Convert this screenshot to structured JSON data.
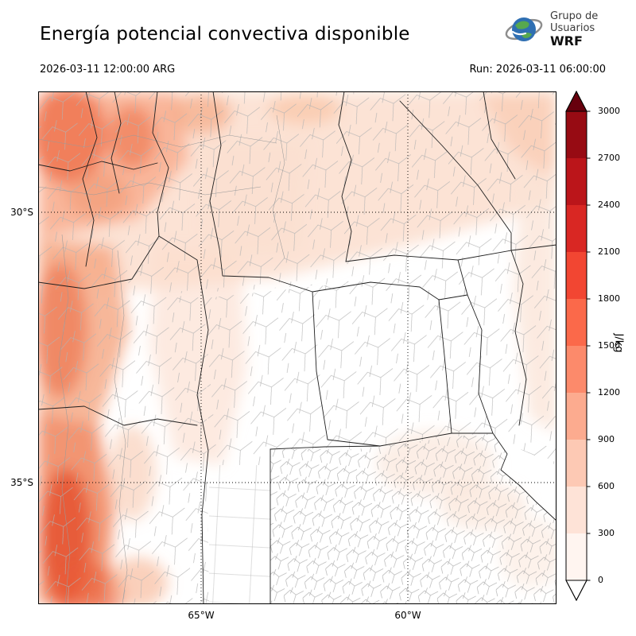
{
  "header": {
    "title": "Energía potencial convectiva disponible",
    "logo": {
      "line1": "Grupo de",
      "line2": "Usuarios",
      "line3": "WRF"
    },
    "valid_time": "2026-03-11 12:00:00 ARG",
    "run_label": "Run: 2026-03-11 06:00:00"
  },
  "map": {
    "lat_ticks": [
      "30°S",
      "35°S"
    ],
    "lon_ticks": [
      "65°W",
      "60°W"
    ]
  },
  "colorbar": {
    "unit": "J/kg",
    "tick_values": [
      "0",
      "300",
      "600",
      "900",
      "1200",
      "1500",
      "1800",
      "2100",
      "2400",
      "2700",
      "3000"
    ],
    "segment_colors_bottom_to_top": [
      "#fff5f0",
      "#fee3d7",
      "#fdc9b4",
      "#fcab8f",
      "#fc8a6b",
      "#fb694a",
      "#f24632",
      "#d92723",
      "#bb151a",
      "#970b13"
    ],
    "over_color": "#67000d",
    "under_color": "#ffffff"
  },
  "chart_data": {
    "type": "heatmap",
    "title": "Energía potencial convectiva disponible",
    "unit": "J/kg",
    "valid_time": "2026-03-11 12:00:00 ARG",
    "run": "2026-03-11 06:00:00",
    "colorbar_range": [
      0,
      3000
    ],
    "colorbar_ticks": [
      0,
      300,
      600,
      900,
      1200,
      1500,
      1800,
      2100,
      2400,
      2700,
      3000
    ],
    "lat_gridlines": [
      "30°S",
      "35°S"
    ],
    "lon_gridlines": [
      "65°W",
      "60°W"
    ],
    "approx_regions": [
      {
        "area": "northwest corner (mountains)",
        "value_jkg": [
          600,
          1200
        ]
      },
      {
        "area": "northern band",
        "value_jkg": [
          300,
          600
        ]
      },
      {
        "area": "western edge",
        "value_jkg": [
          300,
          900
        ]
      },
      {
        "area": "southwest band",
        "value_jkg": [
          600,
          1500
        ]
      },
      {
        "area": "center and southeast plains",
        "value_jkg": [
          0,
          300
        ]
      },
      {
        "area": "eastern edge band",
        "value_jkg": [
          0,
          300
        ]
      }
    ]
  }
}
